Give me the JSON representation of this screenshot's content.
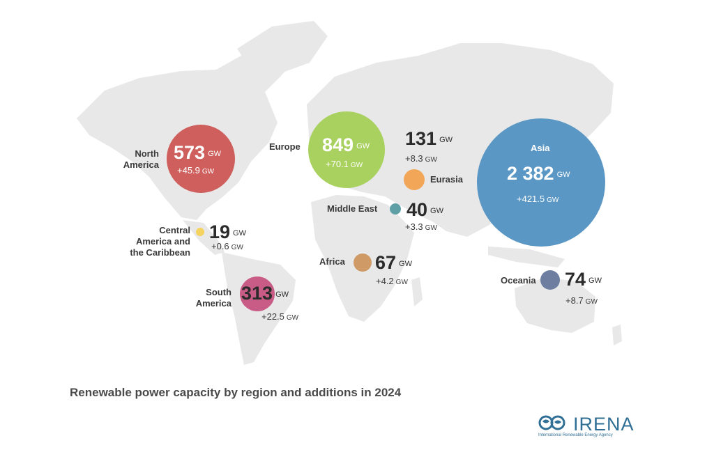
{
  "title": "Renewable power capacity by region and additions in 2024",
  "unit": "GW",
  "logo": {
    "name": "IRENA",
    "subtitle": "International Renewable Energy Agency"
  },
  "regions": [
    {
      "id": "north-america",
      "label": "North America",
      "capacity": "573",
      "additions": "+45.9",
      "color": "#cf5f5c"
    },
    {
      "id": "europe",
      "label": "Europe",
      "capacity": "849",
      "additions": "+70.1",
      "color": "#a9d15f"
    },
    {
      "id": "eurasia",
      "label": "Eurasia",
      "capacity": "131",
      "additions": "+8.3",
      "color": "#f2a657"
    },
    {
      "id": "asia",
      "label": "Asia",
      "capacity": "2 382",
      "additions": "+421.5",
      "color": "#5a97c4"
    },
    {
      "id": "middle-east",
      "label": "Middle East",
      "capacity": "40",
      "additions": "+3.3",
      "color": "#5ea0a6"
    },
    {
      "id": "central-america",
      "label": "Central America and the Caribbean",
      "capacity": "19",
      "additions": "+0.6",
      "color": "#f4d35f"
    },
    {
      "id": "africa",
      "label": "Africa",
      "capacity": "67",
      "additions": "+4.2",
      "color": "#cf9a65"
    },
    {
      "id": "south-america",
      "label": "South America",
      "capacity": "313",
      "additions": "+22.5",
      "color": "#c95c86"
    },
    {
      "id": "oceania",
      "label": "Oceania",
      "capacity": "74",
      "additions": "+8.7",
      "color": "#6d7ea1"
    }
  ]
}
